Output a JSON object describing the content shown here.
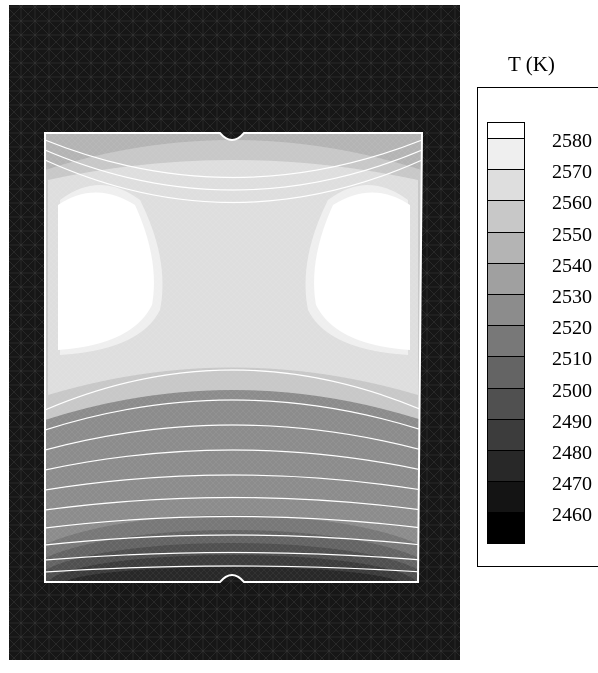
{
  "legend": {
    "title": "T (K)",
    "levels": [
      {
        "label": "2580",
        "color": "#ffffff"
      },
      {
        "label": "2570",
        "color": "#efefef"
      },
      {
        "label": "2560",
        "color": "#dedede"
      },
      {
        "label": "2550",
        "color": "#c8c8c8"
      },
      {
        "label": "2540",
        "color": "#b4b4b4"
      },
      {
        "label": "2530",
        "color": "#a0a0a0"
      },
      {
        "label": "2520",
        "color": "#8c8c8c"
      },
      {
        "label": "2510",
        "color": "#787878"
      },
      {
        "label": "2500",
        "color": "#646464"
      },
      {
        "label": "2490",
        "color": "#505050"
      },
      {
        "label": "2480",
        "color": "#3c3c3c"
      },
      {
        "label": "2470",
        "color": "#282828"
      },
      {
        "label": "2460",
        "color": "#141414"
      },
      {
        "label": "",
        "color": "#000000"
      }
    ]
  }
}
